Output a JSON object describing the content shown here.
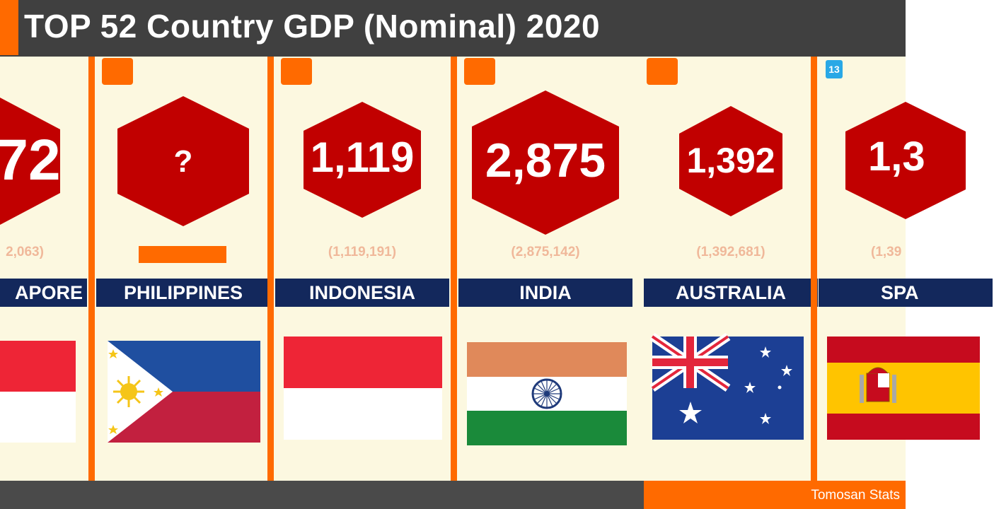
{
  "header": {
    "title": "TOP 52 Country GDP (Nominal) 2020"
  },
  "footer": {
    "credit": "Tomosan Stats"
  },
  "colors": {
    "accent": "#ff6a00",
    "dark_bar": "#404040",
    "hex_red": "#c10000",
    "name_bar": "#13285c",
    "panel_bg": "#fcf8e0"
  },
  "cards": [
    {
      "name": "APORE",
      "gdp_short": "72",
      "gdp_full": "2,063)",
      "flag": "singapore-flag"
    },
    {
      "name": "PHILIPPINES",
      "gdp_short": "?",
      "gdp_full": "",
      "flag": "philippines-flag"
    },
    {
      "name": "INDONESIA",
      "gdp_short": "1,119",
      "gdp_full": "(1,119,191)",
      "flag": "indonesia-flag"
    },
    {
      "name": "INDIA",
      "gdp_short": "2,875",
      "gdp_full": "(2,875,142)",
      "flag": "india-flag"
    },
    {
      "name": "AUSTRALIA",
      "gdp_short": "1,392",
      "gdp_full": "(1,392,681)",
      "flag": "australia-flag"
    },
    {
      "name": "SPA",
      "gdp_short": "1,3",
      "gdp_full": "(1,39",
      "flag": "spain-flag",
      "rank": "13"
    }
  ]
}
